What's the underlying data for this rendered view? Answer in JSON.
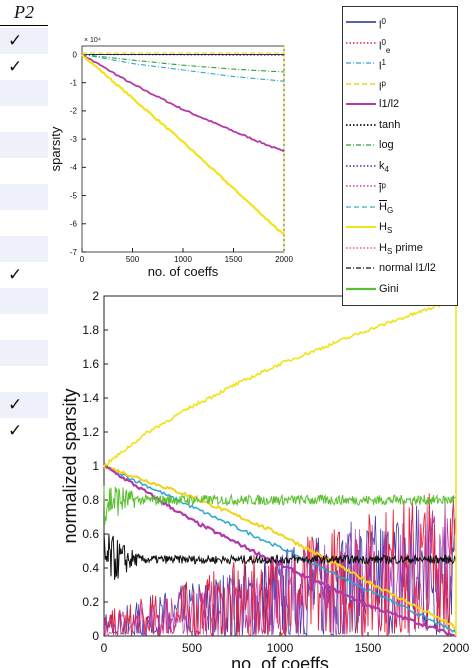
{
  "table": {
    "header": "P2",
    "rows": [
      "✓",
      "✓",
      "",
      "",
      "",
      "",
      "",
      "",
      "",
      "✓",
      "",
      "",
      "",
      "",
      "✓",
      "✓"
    ]
  },
  "legend": [
    {
      "label": "l",
      "sup": "0",
      "sub": "",
      "overline": false,
      "color": "#1f2f8f",
      "dash": "",
      "width": 1.6
    },
    {
      "label": "l",
      "sup": "0",
      "sub": "e",
      "overline": false,
      "color": "#e8213a",
      "dash": "1.5 2",
      "width": 1.4
    },
    {
      "label": "l",
      "sup": "1",
      "sub": "",
      "overline": false,
      "color": "#2aa7cc",
      "dash": "5 2 1 2",
      "width": 1.2
    },
    {
      "label": "l",
      "sup": "p",
      "sub": "",
      "overline": false,
      "color": "#f2d21a",
      "dash": "5 3",
      "width": 1.5
    },
    {
      "label": "l1/l2",
      "sup": "",
      "sub": "",
      "overline": false,
      "color": "#b23aa8",
      "dash": "",
      "width": 2
    },
    {
      "label": "tanh",
      "sup": "",
      "sub": "",
      "overline": false,
      "color": "#111111",
      "dash": "1.5 2",
      "width": 1.8
    },
    {
      "label": "log",
      "sup": "",
      "sub": "",
      "overline": false,
      "color": "#2f9f3a",
      "dash": "5 2 1 2",
      "width": 1.2
    },
    {
      "label": "k",
      "sup": "",
      "sub": "4",
      "overline": false,
      "color": "#3a3aa8",
      "dash": "1.5 2",
      "width": 1.4
    },
    {
      "label": "l",
      "sup": "p",
      "sub": "",
      "overline": true,
      "color": "#d03ab0",
      "dash": "1.5 2",
      "width": 1.4
    },
    {
      "label": "H",
      "sup": "",
      "sub": "G",
      "overline": true,
      "color": "#3ab0c8",
      "dash": "5 3",
      "width": 1.2
    },
    {
      "label": "H",
      "sup": "",
      "sub": "S",
      "overline": false,
      "color": "#f2e21a",
      "dash": "",
      "width": 2
    },
    {
      "label": "H",
      "sup": "",
      "sub": "S",
      "overline": false,
      "suffix": " prime",
      "color": "#e858a8",
      "dash": "1.5 2",
      "width": 1.4
    },
    {
      "label": "normal l1/l2",
      "sup": "",
      "sub": "",
      "overline": false,
      "color": "#111111",
      "dash": "5 2 1 2",
      "width": 1.2
    },
    {
      "label": "Gini",
      "sup": "",
      "sub": "",
      "overline": false,
      "color": "#5cc034",
      "dash": "",
      "width": 2.2
    }
  ],
  "chart_data": [
    {
      "type": "line",
      "xlabel": "no. of coeffs",
      "ylabel": "sparsity",
      "exponent_label": "× 10⁴",
      "xlim": [
        0,
        2000
      ],
      "ylim": [
        -7,
        0.3
      ],
      "xticks": [
        0,
        500,
        1000,
        1500,
        2000
      ],
      "yticks": [
        0,
        -1,
        -2,
        -3,
        -4,
        -5,
        -6,
        -7
      ],
      "series": [
        {
          "name": "l^0",
          "x": [
            0,
            2000
          ],
          "y": [
            0,
            0
          ]
        },
        {
          "name": "l^0_e",
          "x": [
            0,
            2000
          ],
          "y": [
            0,
            0
          ]
        },
        {
          "name": "l^p",
          "x": [
            0,
            2000
          ],
          "y": [
            0.05,
            0.05
          ]
        },
        {
          "name": "tanh",
          "x": [
            0,
            2000
          ],
          "y": [
            0,
            -0.02
          ]
        },
        {
          "name": "l^1",
          "x": [
            0,
            500,
            1000,
            1500,
            2000
          ],
          "y": [
            0,
            -0.32,
            -0.55,
            -0.78,
            -0.95
          ]
        },
        {
          "name": "log",
          "x": [
            0,
            500,
            1000,
            1500,
            2000
          ],
          "y": [
            0,
            -0.2,
            -0.38,
            -0.52,
            -0.62
          ]
        },
        {
          "name": "l1/l2",
          "x": [
            0,
            500,
            1000,
            1500,
            2000
          ],
          "y": [
            0,
            -1.05,
            -1.95,
            -2.72,
            -3.45
          ]
        },
        {
          "name": "H_S",
          "x": [
            0,
            500,
            1000,
            1500,
            2000
          ],
          "y": [
            0,
            -1.55,
            -3.1,
            -4.75,
            -6.4
          ]
        }
      ]
    },
    {
      "type": "line",
      "xlabel": "no. of coeffs",
      "ylabel": "normalized sparsity",
      "xlim": [
        0,
        2000
      ],
      "ylim": [
        0,
        2
      ],
      "xticks": [
        0,
        500,
        1000,
        1500,
        2000
      ],
      "yticks": [
        0,
        0.2,
        0.4,
        0.6,
        0.8,
        1,
        1.2,
        1.4,
        1.6,
        1.8,
        2
      ],
      "series": [
        {
          "name": "H_S",
          "x": [
            0,
            250,
            500,
            750,
            1000,
            1250,
            1500,
            1750,
            2000
          ],
          "y": [
            1,
            1.2,
            1.35,
            1.48,
            1.6,
            1.7,
            1.8,
            1.89,
            1.98
          ]
        },
        {
          "name": "Gini",
          "x": [
            0,
            500,
            1000,
            1500,
            2000
          ],
          "y": [
            0.8,
            0.8,
            0.8,
            0.8,
            0.8
          ]
        },
        {
          "name": "tanh",
          "x": [
            0,
            500,
            1000,
            1500,
            2000
          ],
          "y": [
            0.46,
            0.45,
            0.45,
            0.45,
            0.45
          ]
        },
        {
          "name": "l^1",
          "x": [
            0,
            500,
            1000,
            1500,
            2000
          ],
          "y": [
            1,
            0.76,
            0.52,
            0.27,
            0.02
          ]
        },
        {
          "name": "l^p",
          "x": [
            0,
            500,
            1000,
            1500,
            2000
          ],
          "y": [
            1,
            0.82,
            0.6,
            0.32,
            0.05
          ]
        },
        {
          "name": "l1/l2",
          "x": [
            0,
            500,
            1000,
            1500,
            2000
          ],
          "y": [
            1,
            0.68,
            0.42,
            0.18,
            0
          ]
        },
        {
          "name": "l^0_e",
          "x": [
            0,
            500,
            1000,
            1500,
            2000
          ],
          "y": [
            0,
            0.12,
            0.22,
            0.32,
            0.42
          ]
        }
      ]
    }
  ]
}
